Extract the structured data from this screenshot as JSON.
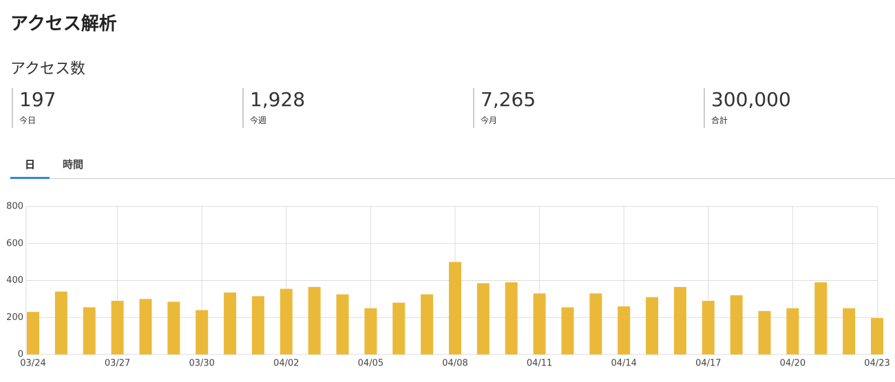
{
  "header": {
    "title": "アクセス解析",
    "subtitle": "アクセス数"
  },
  "stats": [
    {
      "value": "197",
      "label": "今日"
    },
    {
      "value": "1,928",
      "label": "今週"
    },
    {
      "value": "7,265",
      "label": "今月"
    },
    {
      "value": "300,000",
      "label": "合計"
    }
  ],
  "tabs": [
    "日",
    "時間"
  ],
  "chart_data": {
    "type": "bar",
    "categories": [
      "03/24",
      null,
      null,
      "03/27",
      null,
      null,
      "03/30",
      null,
      null,
      "04/02",
      null,
      null,
      "04/05",
      null,
      null,
      "04/08",
      null,
      null,
      "04/11",
      null,
      null,
      "04/14",
      null,
      null,
      "04/17",
      null,
      null,
      "04/20",
      null,
      null,
      "04/23"
    ],
    "values": [
      230,
      340,
      255,
      290,
      300,
      285,
      240,
      335,
      315,
      355,
      365,
      325,
      250,
      280,
      325,
      500,
      385,
      390,
      330,
      255,
      330,
      260,
      310,
      365,
      290,
      320,
      235,
      250,
      390,
      250,
      197
    ],
    "color": "#ebb93a",
    "ylim": [
      0,
      800
    ],
    "yticks": [
      0,
      200,
      400,
      600,
      800
    ],
    "grid": true
  }
}
